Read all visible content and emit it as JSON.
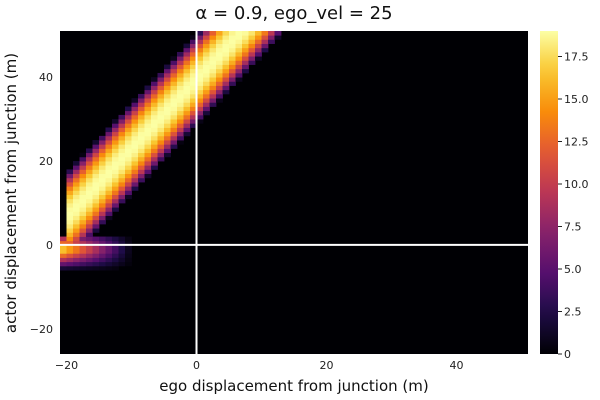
{
  "chart_data": {
    "type": "heatmap",
    "title": "α = 0.9, ego_vel = 25",
    "xlabel": "ego displacement from junction (m)",
    "ylabel": "actor displacement from junction (m)",
    "xlim": [
      -21,
      51
    ],
    "ylim": [
      -26,
      51
    ],
    "x_ticks": [
      -20,
      0,
      20,
      40
    ],
    "y_ticks": [
      -20,
      0,
      20,
      40
    ],
    "cell_size": 1,
    "colorbar": {
      "min": 0,
      "max": 19,
      "ticks": [
        0,
        2.5,
        5,
        7.5,
        10,
        12.5,
        15,
        17.5
      ],
      "tick_labels": [
        "0",
        "2.5",
        "5.0",
        "7.5",
        "10.0",
        "12.5",
        "15.0",
        "17.5"
      ],
      "colormap": "inferno"
    },
    "reference_lines": {
      "x": 0,
      "y": 0,
      "color": "#ffffff"
    },
    "band": {
      "description_of_values": "nonzero region is a diagonal band; value along band centre ≈ 19, edges fade to 0",
      "center_line": {
        "at_x_-20": 6.5,
        "slope": 1.65
      },
      "half_width_y": 11,
      "peak_value": 19,
      "spike_rows": {
        "y_range": [
          -8,
          2
        ],
        "x_min": -21
      }
    },
    "background_value": 0
  }
}
